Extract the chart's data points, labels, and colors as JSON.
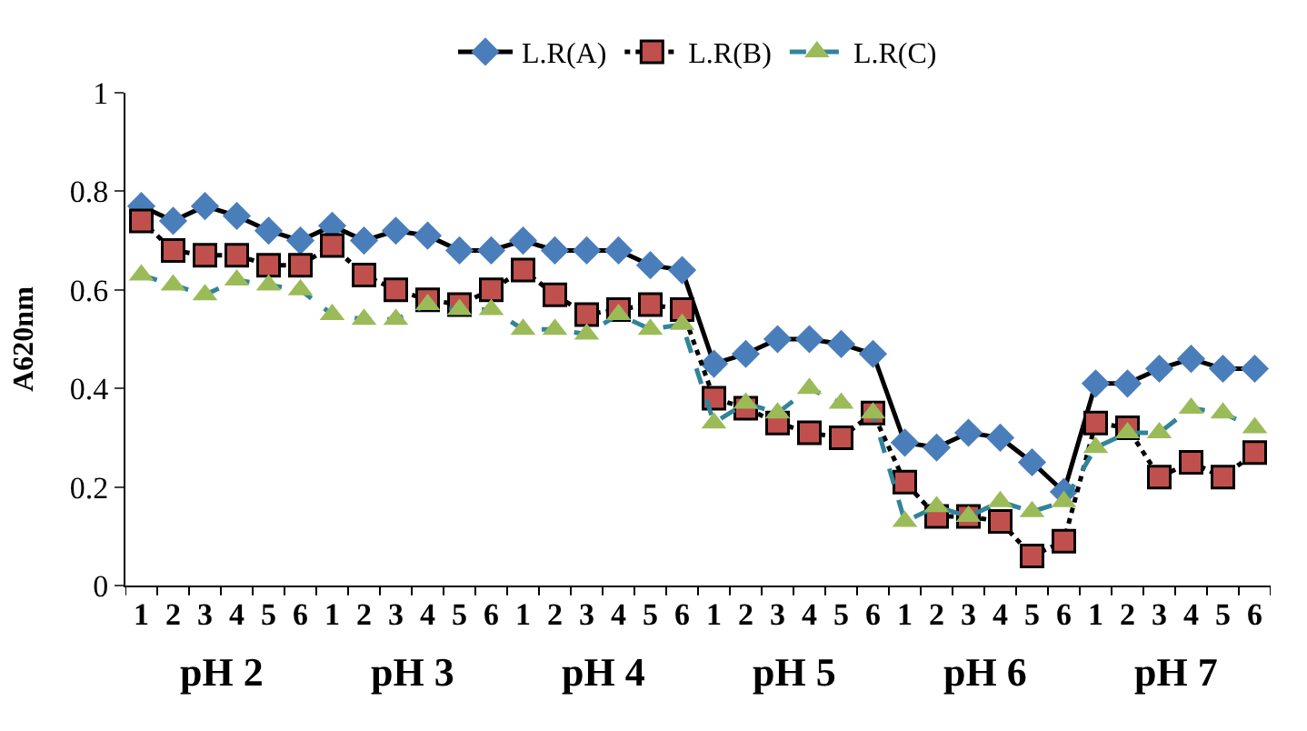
{
  "chart_data": {
    "type": "line",
    "ylabel": "A620nm",
    "categories": [
      "1",
      "2",
      "3",
      "4",
      "5",
      "6",
      "1",
      "2",
      "3",
      "4",
      "5",
      "6",
      "1",
      "2",
      "3",
      "4",
      "5",
      "6",
      "1",
      "2",
      "3",
      "4",
      "5",
      "6",
      "1",
      "2",
      "3",
      "4",
      "5",
      "6",
      "1",
      "2",
      "3",
      "4",
      "5",
      "6"
    ],
    "series": [
      {
        "name": "L.R(A)",
        "color": "#4a7ebb",
        "marker": "diamond",
        "line_style": "solid",
        "values": [
          0.77,
          0.74,
          0.77,
          0.75,
          0.72,
          0.7,
          0.73,
          0.7,
          0.72,
          0.71,
          0.68,
          0.68,
          0.7,
          0.68,
          0.68,
          0.68,
          0.65,
          0.64,
          0.45,
          0.47,
          0.5,
          0.5,
          0.49,
          0.47,
          0.29,
          0.28,
          0.31,
          0.3,
          0.25,
          0.19,
          0.41,
          0.41,
          0.44,
          0.46,
          0.44,
          0.44
        ]
      },
      {
        "name": "L.R(B)",
        "color": "#c0504d",
        "marker": "square",
        "line_style": "dotted",
        "values": [
          0.74,
          0.68,
          0.67,
          0.67,
          0.65,
          0.65,
          0.69,
          0.63,
          0.6,
          0.58,
          0.57,
          0.6,
          0.64,
          0.59,
          0.55,
          0.56,
          0.57,
          0.56,
          0.38,
          0.36,
          0.33,
          0.31,
          0.3,
          0.35,
          0.21,
          0.14,
          0.14,
          0.13,
          0.06,
          0.09,
          0.33,
          0.32,
          0.22,
          0.25,
          0.22,
          0.27
        ]
      },
      {
        "name": "L.R(C)",
        "color": "#9bbb59",
        "marker": "triangle",
        "line_style": "dashed",
        "values": [
          0.63,
          0.61,
          0.59,
          0.62,
          0.61,
          0.6,
          0.55,
          0.54,
          0.54,
          0.57,
          0.56,
          0.56,
          0.52,
          0.52,
          0.51,
          0.55,
          0.52,
          0.53,
          0.33,
          0.37,
          0.35,
          0.4,
          0.37,
          0.35,
          0.13,
          0.16,
          0.14,
          0.17,
          0.15,
          0.17,
          0.28,
          0.31,
          0.31,
          0.36,
          0.35,
          0.32
        ]
      }
    ],
    "annotations": [
      "pH 2",
      "pH 3",
      "pH 4",
      "pH 5",
      "pH 6",
      "pH 7"
    ],
    "ylim": [
      0,
      1
    ],
    "yticks": [
      0,
      0.2,
      0.4,
      0.6,
      0.8,
      1
    ],
    "legend": "top"
  }
}
